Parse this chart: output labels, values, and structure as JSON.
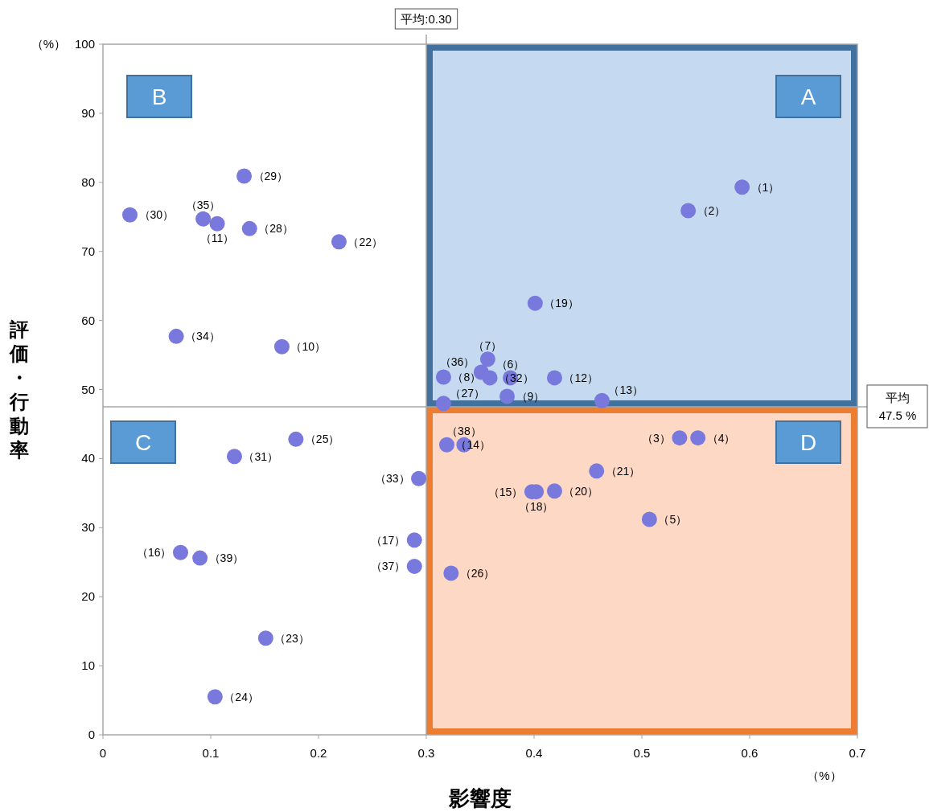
{
  "chart_data": {
    "type": "scatter",
    "xlabel": "影響度",
    "ylabel": "評価・行動率",
    "xlim": [
      0,
      0.7
    ],
    "xticks": [
      0,
      0.1,
      0.2,
      0.3,
      0.4,
      0.5,
      0.6,
      0.7
    ],
    "ylim": [
      0,
      100
    ],
    "yticks": [
      0,
      10,
      20,
      30,
      40,
      50,
      60,
      70,
      80,
      90,
      100
    ],
    "grid": false,
    "legend": false,
    "marker": "circle",
    "series": [
      {
        "name": "（1）",
        "color": "#7878dd",
        "x": [
          0.593
        ],
        "values": [
          79.3
        ]
      },
      {
        "name": "（2）",
        "color": "#7878dd",
        "x": [
          0.543
        ],
        "values": [
          75.9
        ]
      },
      {
        "name": "（3）",
        "color": "#7878dd",
        "x": [
          0.535
        ],
        "values": [
          43.0
        ]
      },
      {
        "name": "（4）",
        "color": "#7878dd",
        "x": [
          0.552
        ],
        "values": [
          43.0
        ]
      },
      {
        "name": "（5）",
        "color": "#7878dd",
        "x": [
          0.507
        ],
        "values": [
          31.2
        ]
      },
      {
        "name": "（6）",
        "color": "#7878dd",
        "x": [
          0.378
        ],
        "values": [
          51.7
        ]
      },
      {
        "name": "（7）",
        "color": "#7878dd",
        "x": [
          0.357
        ],
        "values": [
          54.4
        ]
      },
      {
        "name": "（8）",
        "color": "#7878dd",
        "x": [
          0.316
        ],
        "values": [
          51.8
        ]
      },
      {
        "name": "（9）",
        "color": "#7878dd",
        "x": [
          0.375
        ],
        "values": [
          49.0
        ]
      },
      {
        "name": "（10）",
        "color": "#7878dd",
        "x": [
          0.166
        ],
        "values": [
          56.2
        ]
      },
      {
        "name": "（11）",
        "color": "#7878dd",
        "x": [
          0.106
        ],
        "values": [
          74.0
        ]
      },
      {
        "name": "（12）",
        "color": "#7878dd",
        "x": [
          0.419
        ],
        "values": [
          51.7
        ]
      },
      {
        "name": "（13）",
        "color": "#7878dd",
        "x": [
          0.463
        ],
        "values": [
          48.4
        ]
      },
      {
        "name": "（14）",
        "color": "#7878dd",
        "x": [
          0.319
        ],
        "values": [
          42.0
        ]
      },
      {
        "name": "（15）",
        "color": "#7878dd",
        "x": [
          0.398
        ],
        "values": [
          35.2
        ]
      },
      {
        "name": "（16）",
        "color": "#7878dd",
        "x": [
          0.072
        ],
        "values": [
          26.4
        ]
      },
      {
        "name": "（17）",
        "color": "#7878dd",
        "x": [
          0.289
        ],
        "values": [
          28.2
        ]
      },
      {
        "name": "（18）",
        "color": "#7878dd",
        "x": [
          0.402
        ],
        "values": [
          35.2
        ]
      },
      {
        "name": "（19）",
        "color": "#7878dd",
        "x": [
          0.401
        ],
        "values": [
          62.5
        ]
      },
      {
        "name": "（20）",
        "color": "#7878dd",
        "x": [
          0.419
        ],
        "values": [
          35.3
        ]
      },
      {
        "name": "（21）",
        "color": "#7878dd",
        "x": [
          0.458
        ],
        "values": [
          38.2
        ]
      },
      {
        "name": "（22）",
        "color": "#7878dd",
        "x": [
          0.219
        ],
        "values": [
          71.4
        ]
      },
      {
        "name": "（23）",
        "color": "#7878dd",
        "x": [
          0.151
        ],
        "values": [
          14.0
        ]
      },
      {
        "name": "（24）",
        "color": "#7878dd",
        "x": [
          0.104
        ],
        "values": [
          5.5
        ]
      },
      {
        "name": "（25）",
        "color": "#7878dd",
        "x": [
          0.179
        ],
        "values": [
          42.8
        ]
      },
      {
        "name": "（26）",
        "color": "#7878dd",
        "x": [
          0.323
        ],
        "values": [
          23.4
        ]
      },
      {
        "name": "（27）",
        "color": "#7878dd",
        "x": [
          0.316
        ],
        "values": [
          48.0
        ]
      },
      {
        "name": "（28）",
        "color": "#7878dd",
        "x": [
          0.136
        ],
        "values": [
          73.3
        ]
      },
      {
        "name": "（29）",
        "color": "#7878dd",
        "x": [
          0.131
        ],
        "values": [
          80.9
        ]
      },
      {
        "name": "（30）",
        "color": "#7878dd",
        "x": [
          0.025
        ],
        "values": [
          75.3
        ]
      },
      {
        "name": "（31）",
        "color": "#7878dd",
        "x": [
          0.122
        ],
        "values": [
          40.3
        ]
      },
      {
        "name": "（32）",
        "color": "#7878dd",
        "x": [
          0.359
        ],
        "values": [
          51.7
        ]
      },
      {
        "name": "（33）",
        "color": "#7878dd",
        "x": [
          0.293
        ],
        "values": [
          37.1
        ]
      },
      {
        "name": "（34）",
        "color": "#7878dd",
        "x": [
          0.068
        ],
        "values": [
          57.7
        ]
      },
      {
        "name": "（35）",
        "color": "#7878dd",
        "x": [
          0.093
        ],
        "values": [
          74.7
        ]
      },
      {
        "name": "（36）",
        "color": "#7878dd",
        "x": [
          0.351
        ],
        "values": [
          52.5
        ]
      },
      {
        "name": "（37）",
        "color": "#7878dd",
        "x": [
          0.289
        ],
        "values": [
          24.4
        ]
      },
      {
        "name": "（38）",
        "color": "#7878dd",
        "x": [
          0.335
        ],
        "values": [
          42.0
        ]
      },
      {
        "name": "（39）",
        "color": "#7878dd",
        "x": [
          0.09
        ],
        "values": [
          25.6
        ]
      }
    ],
    "ref_lines": [
      {
        "axis": "x",
        "value": 0.3,
        "label": "平均:0.30",
        "color": "#a6a6a6"
      },
      {
        "axis": "y",
        "value": 47.5,
        "label": "平均\n47.5 %",
        "color": "#a6a6a6"
      }
    ],
    "annotations": [
      "A",
      "B",
      "C",
      "D",
      "（%）",
      "（%）"
    ]
  }
}
